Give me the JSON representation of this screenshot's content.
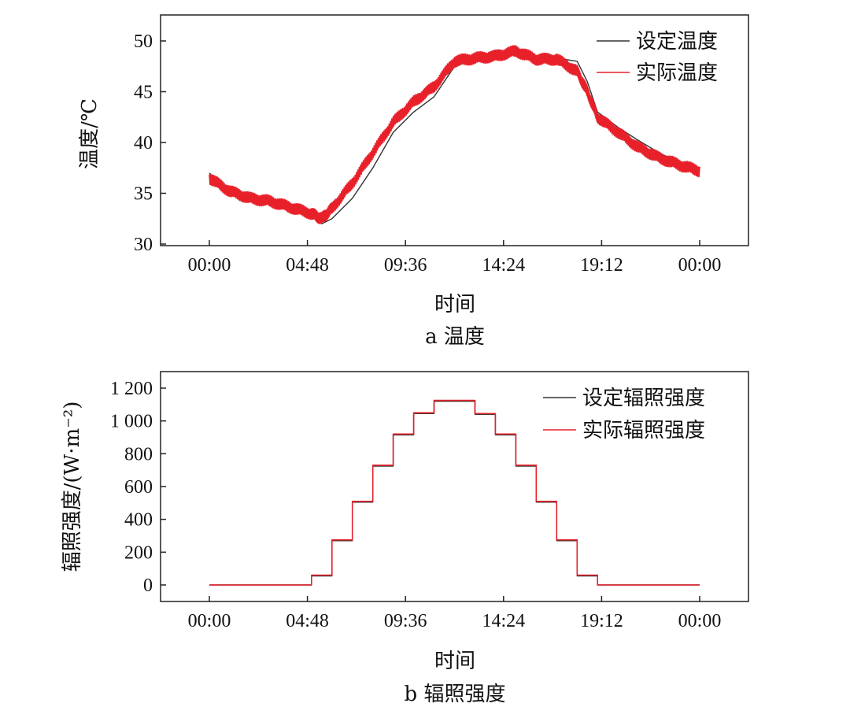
{
  "chart_data": [
    {
      "type": "line",
      "xlabel": "时间",
      "ylabel": "温度/℃",
      "caption": "a 温度",
      "x_ticks": [
        "00:00",
        "04:48",
        "09:36",
        "14:24",
        "19:12",
        "00:00"
      ],
      "x_tick_hours": [
        0,
        4.8,
        9.6,
        14.4,
        19.2,
        24
      ],
      "y_ticks": [
        "30",
        "35",
        "40",
        "45",
        "50"
      ],
      "xlim_hours": [
        -2.4,
        26.4
      ],
      "ylim": [
        30,
        52
      ],
      "legend_position": "top-right",
      "series": [
        {
          "name": "设定温度",
          "color": "#333333",
          "x_hours": [
            0,
            1,
            2,
            3,
            4,
            5,
            5.5,
            6,
            7,
            8,
            9,
            10,
            11,
            12,
            13,
            14,
            15,
            16,
            17,
            18,
            18.5,
            19,
            20,
            21,
            22,
            23,
            24
          ],
          "y": [
            37,
            35,
            34.2,
            34,
            33.5,
            33,
            32,
            32.5,
            34.5,
            37.5,
            41,
            43,
            44.5,
            47.5,
            48.2,
            48.2,
            49.2,
            48.4,
            48.3,
            48,
            46,
            43,
            41.5,
            40.2,
            39,
            38,
            37.2
          ]
        },
        {
          "name": "实际温度",
          "color": "#e8202a",
          "x_hours": [
            0,
            1,
            2,
            3,
            4,
            5,
            5.5,
            6,
            7,
            8,
            9,
            10,
            11,
            12,
            13,
            14,
            15,
            16,
            17,
            18,
            18.5,
            19,
            20,
            21,
            22,
            23,
            24
          ],
          "y": [
            36.5,
            35.2,
            34.5,
            34.2,
            33.6,
            33,
            32.5,
            33.5,
            36,
            39,
            42,
            44,
            45.5,
            48,
            48.3,
            48.5,
            49,
            48.2,
            48.2,
            47,
            45,
            42.5,
            41,
            39.5,
            38.5,
            37.8,
            37.2
          ]
        }
      ]
    },
    {
      "type": "line",
      "step": true,
      "xlabel": "时间",
      "ylabel": "辐照强度/(W·m⁻²)",
      "caption": "b 辐照强度",
      "x_ticks": [
        "00:00",
        "04:48",
        "09:36",
        "14:24",
        "19:12",
        "00:00"
      ],
      "x_tick_hours": [
        0,
        4.8,
        9.6,
        14.4,
        19.2,
        24
      ],
      "y_ticks": [
        "0",
        "200",
        "400",
        "600",
        "800",
        "1 000",
        "1 200"
      ],
      "y_tick_values": [
        0,
        200,
        400,
        600,
        800,
        1000,
        1200
      ],
      "xlim_hours": [
        -2.4,
        26.4
      ],
      "ylim": [
        -100,
        1300
      ],
      "legend_position": "top-right",
      "series": [
        {
          "name": "设定辐照强度",
          "color": "#333333",
          "x_hours": [
            0,
            5,
            6,
            7,
            8,
            9,
            10,
            11,
            12,
            13,
            14,
            15,
            16,
            17,
            18,
            19,
            24
          ],
          "y": [
            0,
            55,
            270,
            505,
            725,
            915,
            1045,
            1120,
            1120,
            1040,
            915,
            725,
            505,
            270,
            55,
            0,
            0
          ]
        },
        {
          "name": "实际辐照强度",
          "color": "#e8202a",
          "x_hours": [
            0,
            5,
            6,
            7,
            8,
            9,
            10,
            11,
            12,
            13,
            14,
            15,
            16,
            17,
            18,
            19,
            24
          ],
          "y": [
            0,
            60,
            275,
            510,
            730,
            920,
            1050,
            1125,
            1125,
            1045,
            920,
            730,
            510,
            275,
            60,
            0,
            0
          ]
        }
      ]
    }
  ]
}
